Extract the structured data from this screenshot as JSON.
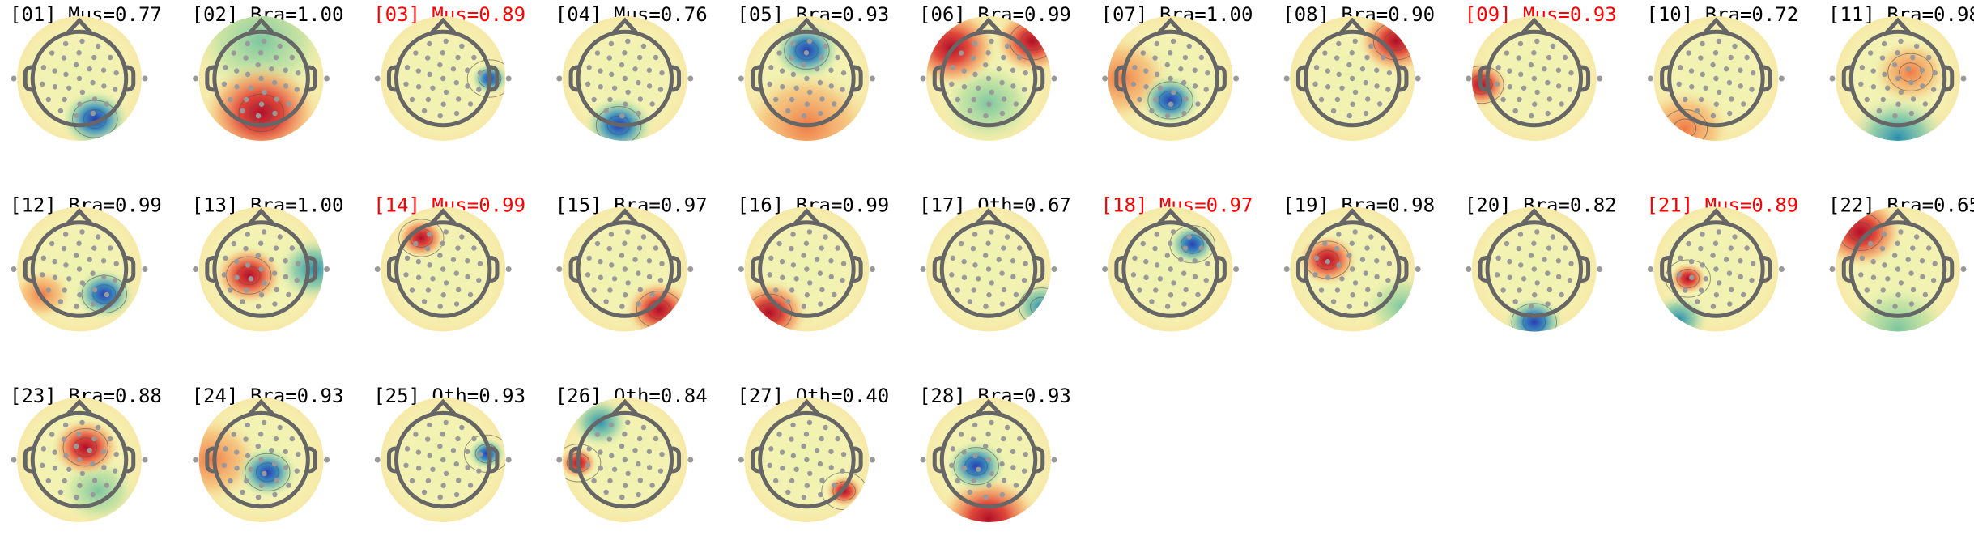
{
  "components": [
    {
      "label": "[01] Mus=0.77",
      "color": "#000000"
    },
    {
      "label": "[02] Bra=1.00",
      "color": "#000000"
    },
    {
      "label": "[03] Mus=0.89",
      "color": "#ff0000"
    },
    {
      "label": "[04] Mus=0.76",
      "color": "#000000"
    },
    {
      "label": "[05] Bra=0.93",
      "color": "#000000"
    },
    {
      "label": "[06] Bra=0.99",
      "color": "#000000"
    },
    {
      "label": "[07] Bra=1.00",
      "color": "#000000"
    },
    {
      "label": "[08] Bra=0.90",
      "color": "#000000"
    },
    {
      "label": "[09] Mus=0.93",
      "color": "#ff0000"
    },
    {
      "label": "[10] Bra=0.72",
      "color": "#000000"
    },
    {
      "label": "[11] Bra=0.98",
      "color": "#000000"
    },
    {
      "label": "[12] Bra=0.99",
      "color": "#000000"
    },
    {
      "label": "[13] Bra=1.00",
      "color": "#000000"
    },
    {
      "label": "[14] Mus=0.99",
      "color": "#ff0000"
    },
    {
      "label": "[15] Bra=0.97",
      "color": "#000000"
    },
    {
      "label": "[16] Bra=0.99",
      "color": "#000000"
    },
    {
      "label": "[17] Oth=0.67",
      "color": "#000000"
    },
    {
      "label": "[18] Mus=0.97",
      "color": "#ff0000"
    },
    {
      "label": "[19] Bra=0.98",
      "color": "#000000"
    },
    {
      "label": "[20] Bra=0.82",
      "color": "#000000"
    },
    {
      "label": "[21] Mus=0.89",
      "color": "#ff0000"
    },
    {
      "label": "[22] Bra=0.65",
      "color": "#000000"
    },
    {
      "label": "[23] Bra=0.88",
      "color": "#000000"
    },
    {
      "label": "[24] Bra=0.93",
      "color": "#000000"
    },
    {
      "label": "[25] Oth=0.93",
      "color": "#000000"
    },
    {
      "label": "[26] Oth=0.84",
      "color": "#000000"
    },
    {
      "label": "[27] Oth=0.40",
      "color": "#000000"
    },
    {
      "label": "[28] Bra=0.93",
      "color": "#000000"
    }
  ]
}
